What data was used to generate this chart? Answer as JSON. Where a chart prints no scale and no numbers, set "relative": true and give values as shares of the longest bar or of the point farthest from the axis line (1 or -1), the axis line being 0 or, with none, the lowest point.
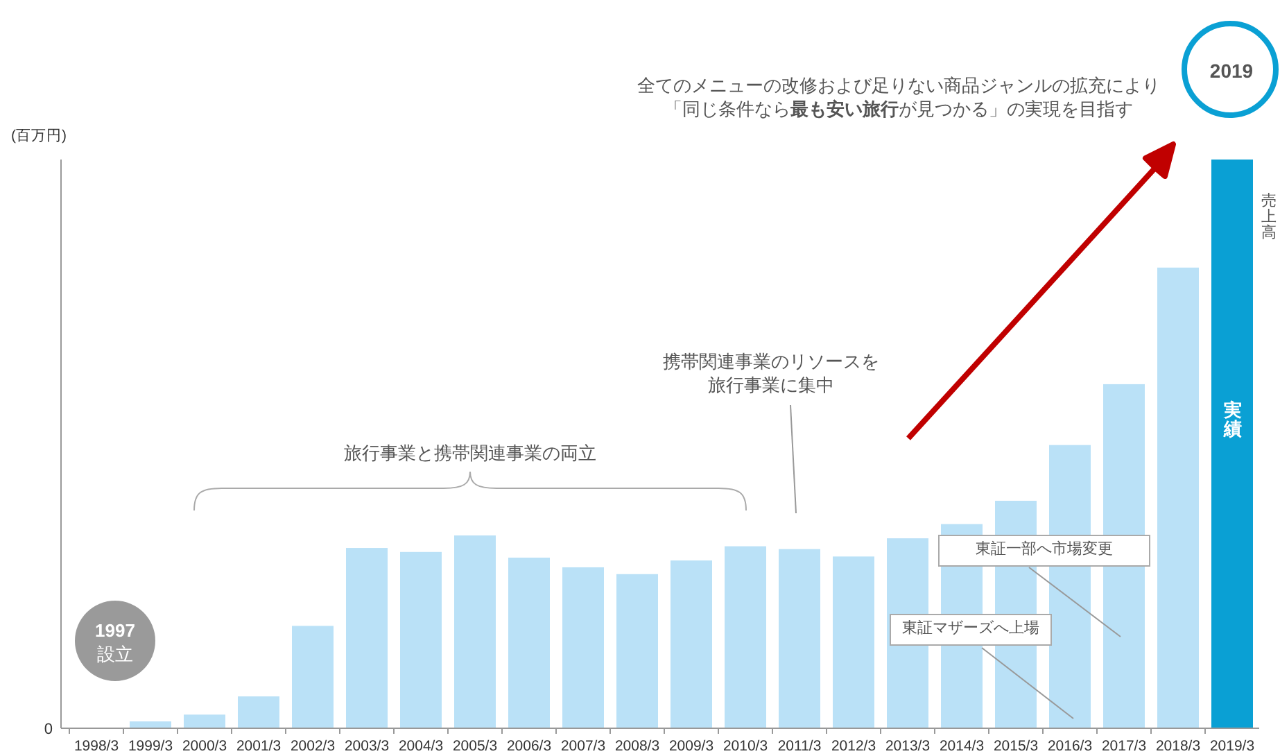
{
  "chart_data": {
    "type": "bar",
    "relative": true,
    "ylabel": "(百万円)",
    "categories": [
      "1998/3",
      "1999/3",
      "2000/3",
      "2001/3",
      "2002/3",
      "2003/3",
      "2004/3",
      "2005/3",
      "2006/3",
      "2007/3",
      "2008/3",
      "2009/3",
      "2010/3",
      "2011/3",
      "2012/3",
      "2013/3",
      "2014/3",
      "2015/3",
      "2016/3",
      "2017/3",
      "2018/3",
      "2019/3"
    ],
    "values": [
      0,
      0.012,
      0.024,
      0.056,
      0.18,
      0.317,
      0.31,
      0.339,
      0.3,
      0.283,
      0.271,
      0.295,
      0.32,
      0.315,
      0.302,
      0.334,
      0.359,
      0.4,
      0.498,
      0.605,
      0.81,
      1.0
    ],
    "colors": [
      "#bae1f7",
      "#bae1f7",
      "#bae1f7",
      "#bae1f7",
      "#bae1f7",
      "#bae1f7",
      "#bae1f7",
      "#bae1f7",
      "#bae1f7",
      "#bae1f7",
      "#bae1f7",
      "#bae1f7",
      "#bae1f7",
      "#bae1f7",
      "#bae1f7",
      "#bae1f7",
      "#bae1f7",
      "#bae1f7",
      "#bae1f7",
      "#bae1f7",
      "#bae1f7",
      "#0aa0d4"
    ],
    "annotations": [
      "全てのメニューの改修および足りない商品ジャンルの拡充により",
      "「同じ条件なら**最も安い旅行**が見つかる」の実現を目指す",
      "2019",
      "1997",
      "設立",
      "携帯関連事業のリソースを",
      "旅行事業に集中",
      "旅行事業と携帯関連事業の両立",
      "東証一部へ市場変更",
      "東証マザーズへ上場",
      "実績",
      "売上高",
      "0"
    ]
  }
}
